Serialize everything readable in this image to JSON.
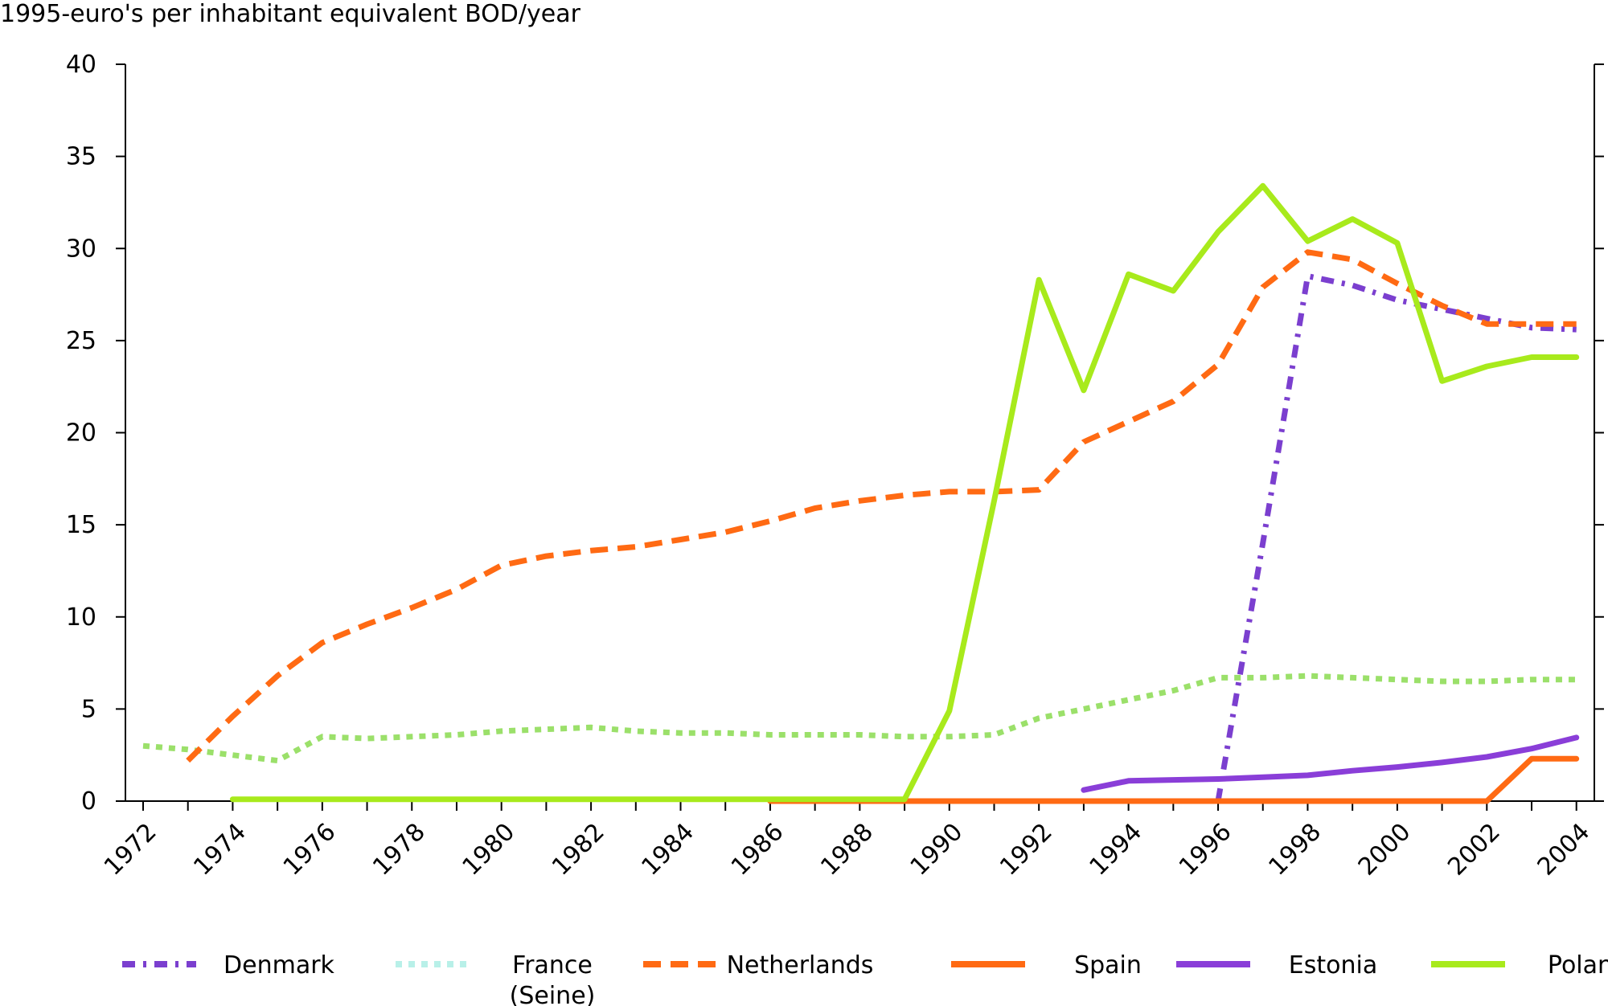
{
  "chart_data": {
    "type": "line",
    "title": "",
    "ylabel": "1995-euro's per inhabitant equivalent BOD/year",
    "xlabel": "",
    "ylim": [
      0,
      40
    ],
    "yticks": [
      0,
      5,
      10,
      15,
      20,
      25,
      30,
      35,
      40
    ],
    "xlim": [
      1972,
      2004
    ],
    "xticks": [
      1972,
      1974,
      1976,
      1978,
      1980,
      1982,
      1984,
      1986,
      1988,
      1990,
      1992,
      1994,
      1996,
      1998,
      2000,
      2002,
      2004
    ],
    "grid": false,
    "legend_position": "bottom",
    "series": [
      {
        "name": "Denmark",
        "legend_lines": [
          "Denmark"
        ],
        "color": "#7b3fcf",
        "style": "dashdot",
        "x": [
          1996,
          1997,
          1998,
          1999,
          2000,
          2001,
          2002,
          2003,
          2004
        ],
        "y": [
          0,
          14,
          28.5,
          28.0,
          27.2,
          26.7,
          26.2,
          25.7,
          25.6
        ]
      },
      {
        "name": "France (Seine)",
        "legend_lines": [
          "France",
          "(Seine)"
        ],
        "color": "#9be06a",
        "legend_color": "#b8f0e8",
        "style": "dotted",
        "x": [
          1972,
          1973,
          1974,
          1975,
          1976,
          1977,
          1978,
          1979,
          1980,
          1981,
          1982,
          1983,
          1984,
          1985,
          1986,
          1987,
          1988,
          1989,
          1990,
          1991,
          1992,
          1993,
          1994,
          1995,
          1996,
          1997,
          1998,
          1999,
          2000,
          2001,
          2002,
          2003,
          2004
        ],
        "y": [
          3.0,
          2.8,
          2.5,
          2.2,
          3.5,
          3.4,
          3.5,
          3.6,
          3.8,
          3.9,
          4.0,
          3.8,
          3.7,
          3.7,
          3.6,
          3.6,
          3.6,
          3.5,
          3.5,
          3.6,
          4.5,
          5.0,
          5.5,
          6.0,
          6.7,
          6.7,
          6.8,
          6.7,
          6.6,
          6.5,
          6.5,
          6.6,
          6.6
        ]
      },
      {
        "name": "Netherlands",
        "legend_lines": [
          "Netherlands"
        ],
        "color": "#ff6a13",
        "style": "dashed",
        "x": [
          1973,
          1974,
          1975,
          1976,
          1977,
          1978,
          1979,
          1980,
          1981,
          1982,
          1983,
          1984,
          1985,
          1986,
          1987,
          1988,
          1989,
          1990,
          1991,
          1992,
          1993,
          1994,
          1995,
          1996,
          1997,
          1998,
          1999,
          2000,
          2001,
          2002,
          2003,
          2004
        ],
        "y": [
          2.2,
          4.6,
          6.8,
          8.6,
          9.6,
          10.5,
          11.5,
          12.8,
          13.3,
          13.6,
          13.8,
          14.2,
          14.6,
          15.2,
          15.9,
          16.3,
          16.6,
          16.8,
          16.8,
          16.9,
          19.5,
          20.6,
          21.7,
          23.7,
          27.9,
          29.8,
          29.4,
          28.1,
          26.9,
          25.9,
          25.9,
          25.9
        ]
      },
      {
        "name": "Spain",
        "legend_lines": [
          "Spain"
        ],
        "color": "#ff6a13",
        "style": "solid",
        "x": [
          1986,
          1987,
          1988,
          1989,
          1990,
          1991,
          1992,
          1993,
          1994,
          1995,
          1996,
          1997,
          1998,
          1999,
          2000,
          2001,
          2002,
          2003,
          2004
        ],
        "y": [
          0,
          0,
          0,
          0,
          0,
          0,
          0,
          0,
          0,
          0,
          0,
          0,
          0,
          0,
          0,
          0,
          0,
          2.3,
          2.3
        ]
      },
      {
        "name": "Estonia",
        "legend_lines": [
          "Estonia"
        ],
        "color": "#8a3ed8",
        "style": "solid",
        "x": [
          1993,
          1994,
          1995,
          1996,
          1997,
          1998,
          1999,
          2000,
          2001,
          2002,
          2003,
          2004
        ],
        "y": [
          0.6,
          1.1,
          1.15,
          1.2,
          1.3,
          1.4,
          1.65,
          1.85,
          2.1,
          2.4,
          2.85,
          3.45
        ]
      },
      {
        "name": "Poland",
        "legend_lines": [
          "Poland"
        ],
        "color": "#a8ea1c",
        "style": "solid",
        "x": [
          1974,
          1975,
          1976,
          1977,
          1978,
          1979,
          1980,
          1981,
          1982,
          1983,
          1984,
          1985,
          1986,
          1987,
          1988,
          1989,
          1990,
          1991,
          1992,
          1993,
          1994,
          1995,
          1996,
          1997,
          1998,
          1999,
          2000,
          2001,
          2002,
          2003,
          2004
        ],
        "y": [
          0.1,
          0.1,
          0.1,
          0.1,
          0.1,
          0.1,
          0.1,
          0.1,
          0.1,
          0.1,
          0.1,
          0.1,
          0.1,
          0.1,
          0.1,
          0.1,
          4.9,
          16.3,
          28.3,
          22.3,
          28.6,
          27.7,
          30.9,
          33.4,
          30.4,
          31.6,
          30.3,
          22.8,
          23.6,
          24.1,
          24.1
        ]
      }
    ]
  }
}
